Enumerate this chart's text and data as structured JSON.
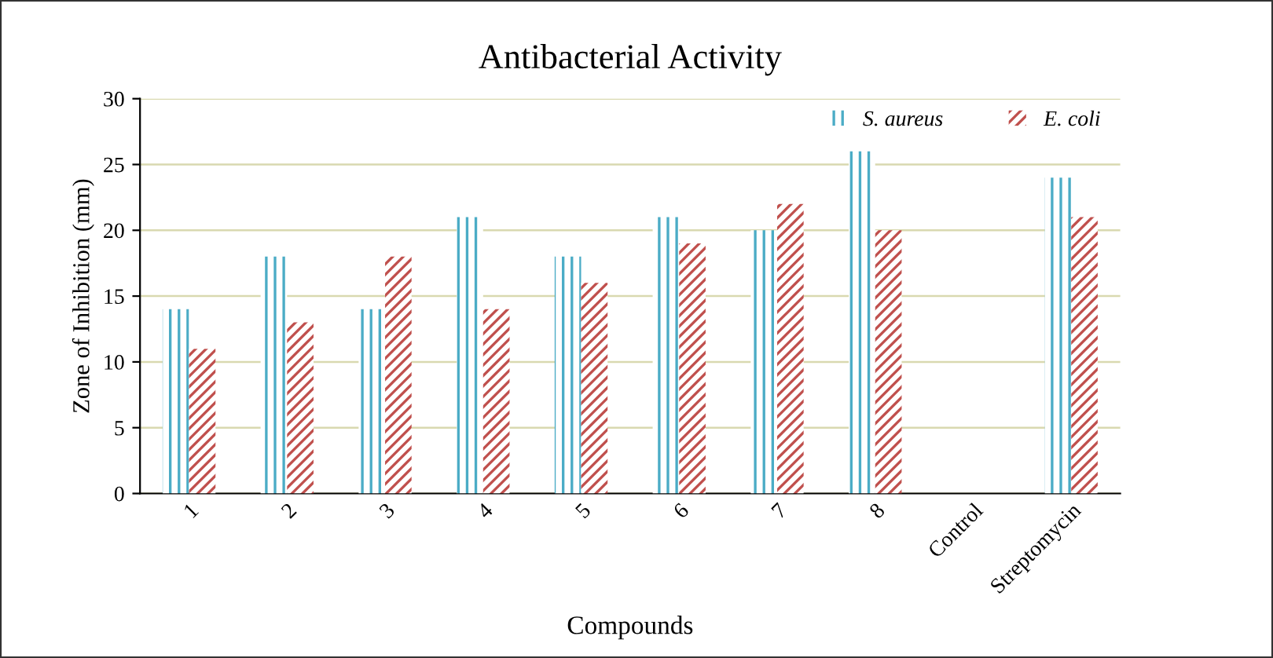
{
  "chart_data": {
    "type": "bar",
    "title": "Antibacterial Activity",
    "xlabel": "Compounds",
    "ylabel": "Zone of Inhibition (mm)",
    "categories": [
      "1",
      "2",
      "3",
      "4",
      "5",
      "6",
      "7",
      "8",
      "Control",
      "Streptomycin"
    ],
    "series": [
      {
        "name": "S. aureus",
        "color": "#4bacc6",
        "values": [
          14,
          18,
          14,
          21,
          18,
          21,
          20,
          26,
          0,
          24
        ]
      },
      {
        "name": "E. coli",
        "color": "#c0504d",
        "values": [
          11,
          13,
          18,
          14,
          16,
          19,
          22,
          20,
          0,
          21
        ]
      }
    ],
    "ylim": [
      0,
      30
    ],
    "yticks": [
      0,
      5,
      10,
      15,
      20,
      25,
      30
    ],
    "grid": "y",
    "legend": "top right"
  }
}
